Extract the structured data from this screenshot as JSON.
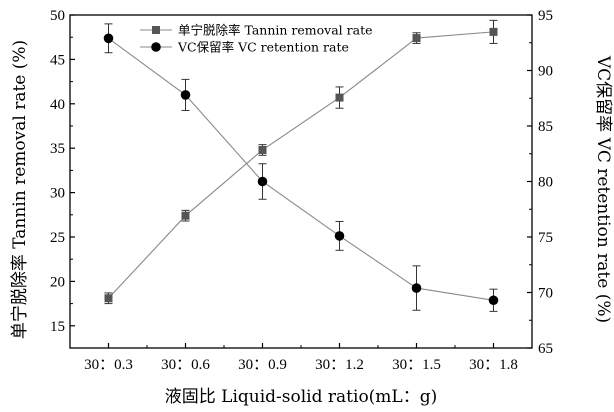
{
  "chart_data": {
    "type": "line",
    "categories": [
      "30：0.3",
      "30：0.6",
      "30：0.9",
      "30：1.2",
      "30：1.5",
      "30：1.8"
    ],
    "xlabel": "液固比 Liquid-solid ratio(mL：g)",
    "ylabel_left": "单宁脱除率 Tannin removal rate (%)",
    "ylabel_right": "VC保留率 VC retention rate (%)",
    "ylim_left": [
      12.5,
      50
    ],
    "ylim_right": [
      65,
      95
    ],
    "yticks_left": [
      "15",
      "20",
      "25",
      "30",
      "35",
      "40",
      "45",
      "50"
    ],
    "yticks_right": [
      "65",
      "70",
      "75",
      "80",
      "85",
      "90",
      "95"
    ],
    "legend_position": "top-center",
    "grid": false,
    "series": [
      {
        "name": "单宁脱除率 Tannin removal rate",
        "axis": "left",
        "marker": "square",
        "marker_color": "#555555",
        "line_color": "#8a8a8a",
        "values": [
          18.1,
          27.4,
          34.8,
          40.7,
          47.4,
          48.1
        ],
        "errors": [
          0.6,
          0.6,
          0.6,
          1.2,
          0.6,
          1.3
        ]
      },
      {
        "name": "VC保留率 VC retention rate",
        "axis": "right",
        "marker": "circle",
        "marker_color": "#000000",
        "line_color": "#8a8a8a",
        "values": [
          92.9,
          87.8,
          80.0,
          75.1,
          70.4,
          69.3
        ],
        "errors": [
          1.3,
          1.4,
          1.6,
          1.3,
          2.0,
          1.0
        ]
      }
    ]
  }
}
